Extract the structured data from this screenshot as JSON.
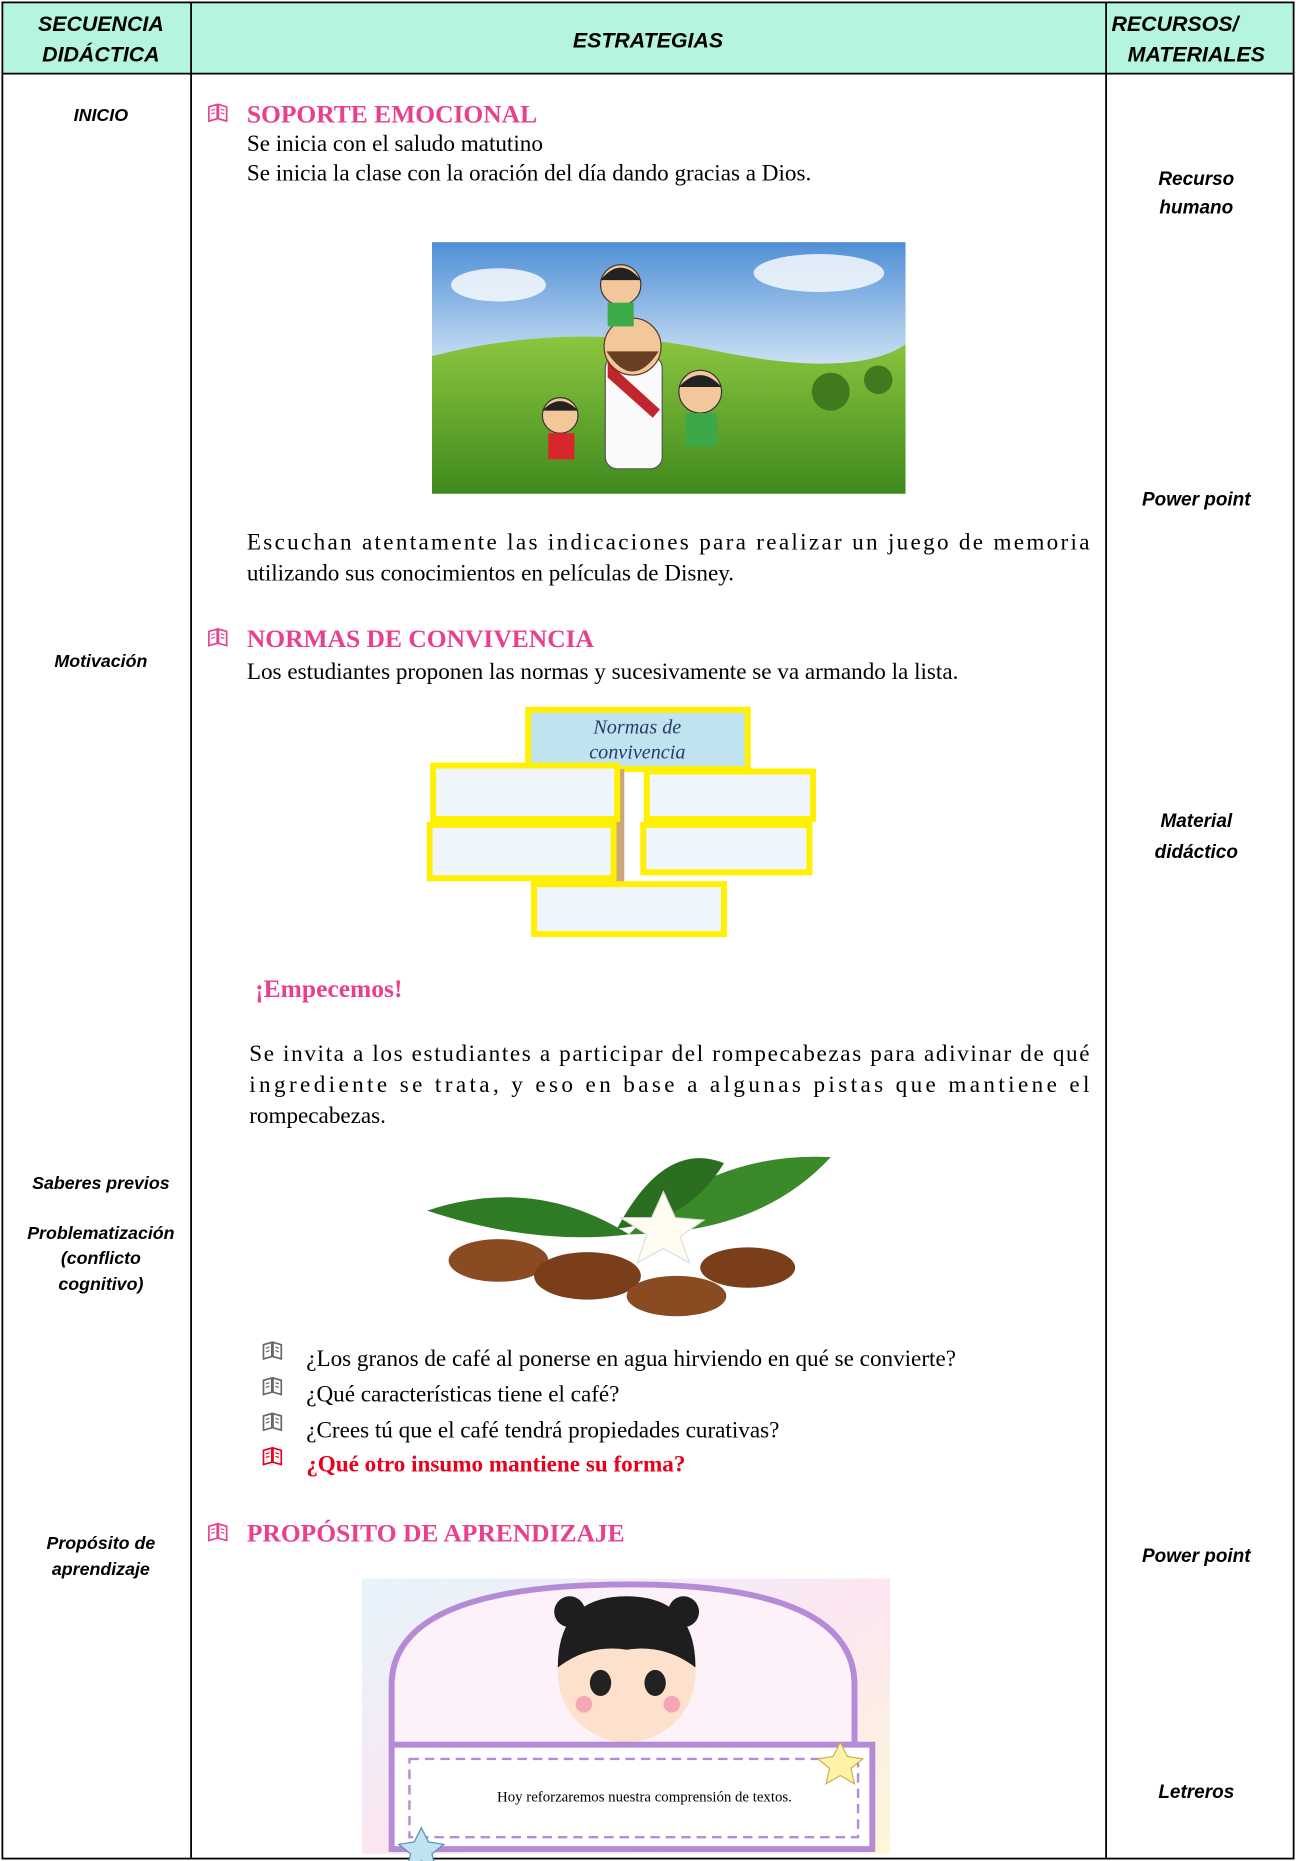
{
  "header": {
    "sequence": [
      "SECUENCIA",
      "DIDÁCTICA"
    ],
    "strategies": "ESTRATEGIAS",
    "resources": [
      "RECURSOS/",
      "MATERIALES"
    ]
  },
  "sequence": [
    [
      "INICIO"
    ],
    [
      "Motivación"
    ],
    [
      "Saberes previos"
    ],
    [
      "Problematización",
      "(conflicto",
      "cognitivo)"
    ],
    [
      "Propósito de",
      "aprendizaje"
    ]
  ],
  "resources": [
    [
      "Recurso",
      "humano"
    ],
    [
      "Power point"
    ],
    [
      "Material",
      "didáctico"
    ],
    [
      "Power point"
    ],
    [
      "Letreros"
    ]
  ],
  "strategies": {
    "emotional_support": {
      "heading": "SOPORTE EMOCIONAL",
      "lines": [
        "Se inicia con el saludo matutino",
        "Se inicia la clase con la oración del día dando gracias a Dios."
      ]
    },
    "activity": {
      "lines": [
        "Escuchan atentamente las indicaciones para realizar un juego de memoria",
        "utilizando sus conocimientos en películas de Disney."
      ]
    },
    "coexistence_rules": {
      "heading": "NORMAS DE CONVIVENCIA",
      "lines": [
        "Los estudiantes proponen las normas y sucesivamente se va armando la lista."
      ],
      "image_text": [
        "Normas de",
        "convivencia"
      ]
    },
    "start": {
      "heading": "¡Empecemos!",
      "lines": [
        "Se invita a los estudiantes a participar del rompecabezas para adivinar de qué",
        "ingrediente se trata, y eso en base a algunas pistas que mantiene el",
        "rompecabezas."
      ]
    },
    "questions": [
      "¿Los granos de café al ponerse en agua hirviendo en qué se convierte?",
      "¿Qué características tiene el café?",
      "¿Crees tú que el café tendrá propiedades curativas?",
      "¿Qué otro insumo mantiene su forma?"
    ],
    "purpose": {
      "heading": "PROPÓSITO DE APRENDIZAJE",
      "image_text": "Hoy reforzaremos nuestra comprensión de textos."
    }
  }
}
